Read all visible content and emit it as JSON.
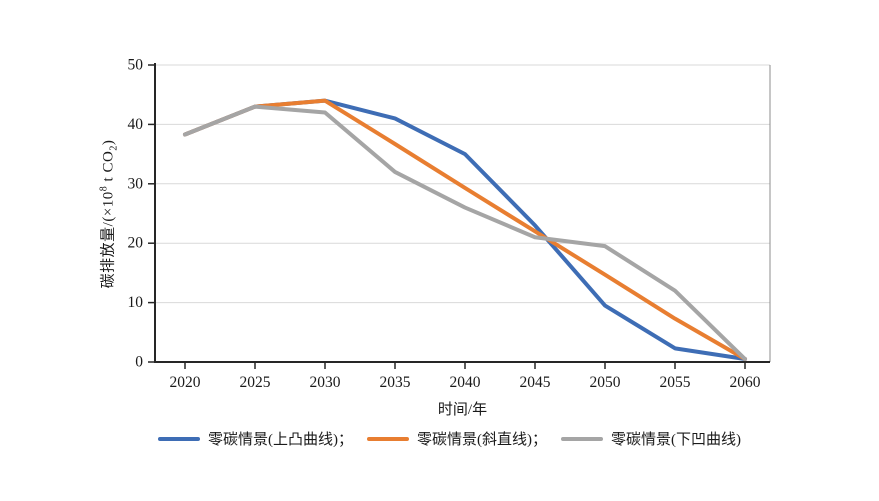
{
  "chart_data": {
    "type": "line",
    "title": "",
    "xlabel": "时间/年",
    "ylabel": "碳排放量/(×10⁸ t CO₂)",
    "x": [
      2020,
      2025,
      2030,
      2035,
      2040,
      2045,
      2050,
      2055,
      2060
    ],
    "x_tick_labels": [
      "2020",
      "2025",
      "2030",
      "2035",
      "2040",
      "2045",
      "2050",
      "2055",
      "2060"
    ],
    "y_ticks": [
      0,
      10,
      20,
      30,
      40,
      50
    ],
    "ylim": [
      0,
      50
    ],
    "xlim": [
      2018,
      2062
    ],
    "grid": "horizontal",
    "legend_position": "bottom",
    "series": [
      {
        "name": "零碳情景(上凸曲线)",
        "color": "#3E6DB5",
        "values": [
          38.3,
          43,
          44,
          41,
          35,
          23,
          9.5,
          2.3,
          0.5
        ]
      },
      {
        "name": "零碳情景(斜直线)",
        "color": "#E87E31",
        "values": [
          38.3,
          43,
          44,
          36.7,
          29.3,
          22,
          14.7,
          7.3,
          0.5
        ]
      },
      {
        "name": "零碳情景(下凹曲线)",
        "color": "#A5A5A5",
        "values": [
          38.3,
          43,
          42,
          32,
          26,
          21,
          19.5,
          12,
          0.5
        ]
      }
    ],
    "colors": {
      "axis": "#262626",
      "grid": "#d9d9d9",
      "plot_border_right": "#8c8c8c",
      "text": "#1a1a1a"
    }
  },
  "y_axis": {
    "title_pre": "碳排放量/(×10",
    "title_sup": "8",
    "title_mid": " t CO",
    "title_sub": "2",
    "title_post": ")"
  },
  "x_axis": {
    "title": "时间/年"
  },
  "legend": {
    "items": [
      {
        "label": "零碳情景(上凸曲线)；"
      },
      {
        "label": "零碳情景(斜直线)；"
      },
      {
        "label": "零碳情景(下凹曲线)"
      }
    ]
  }
}
